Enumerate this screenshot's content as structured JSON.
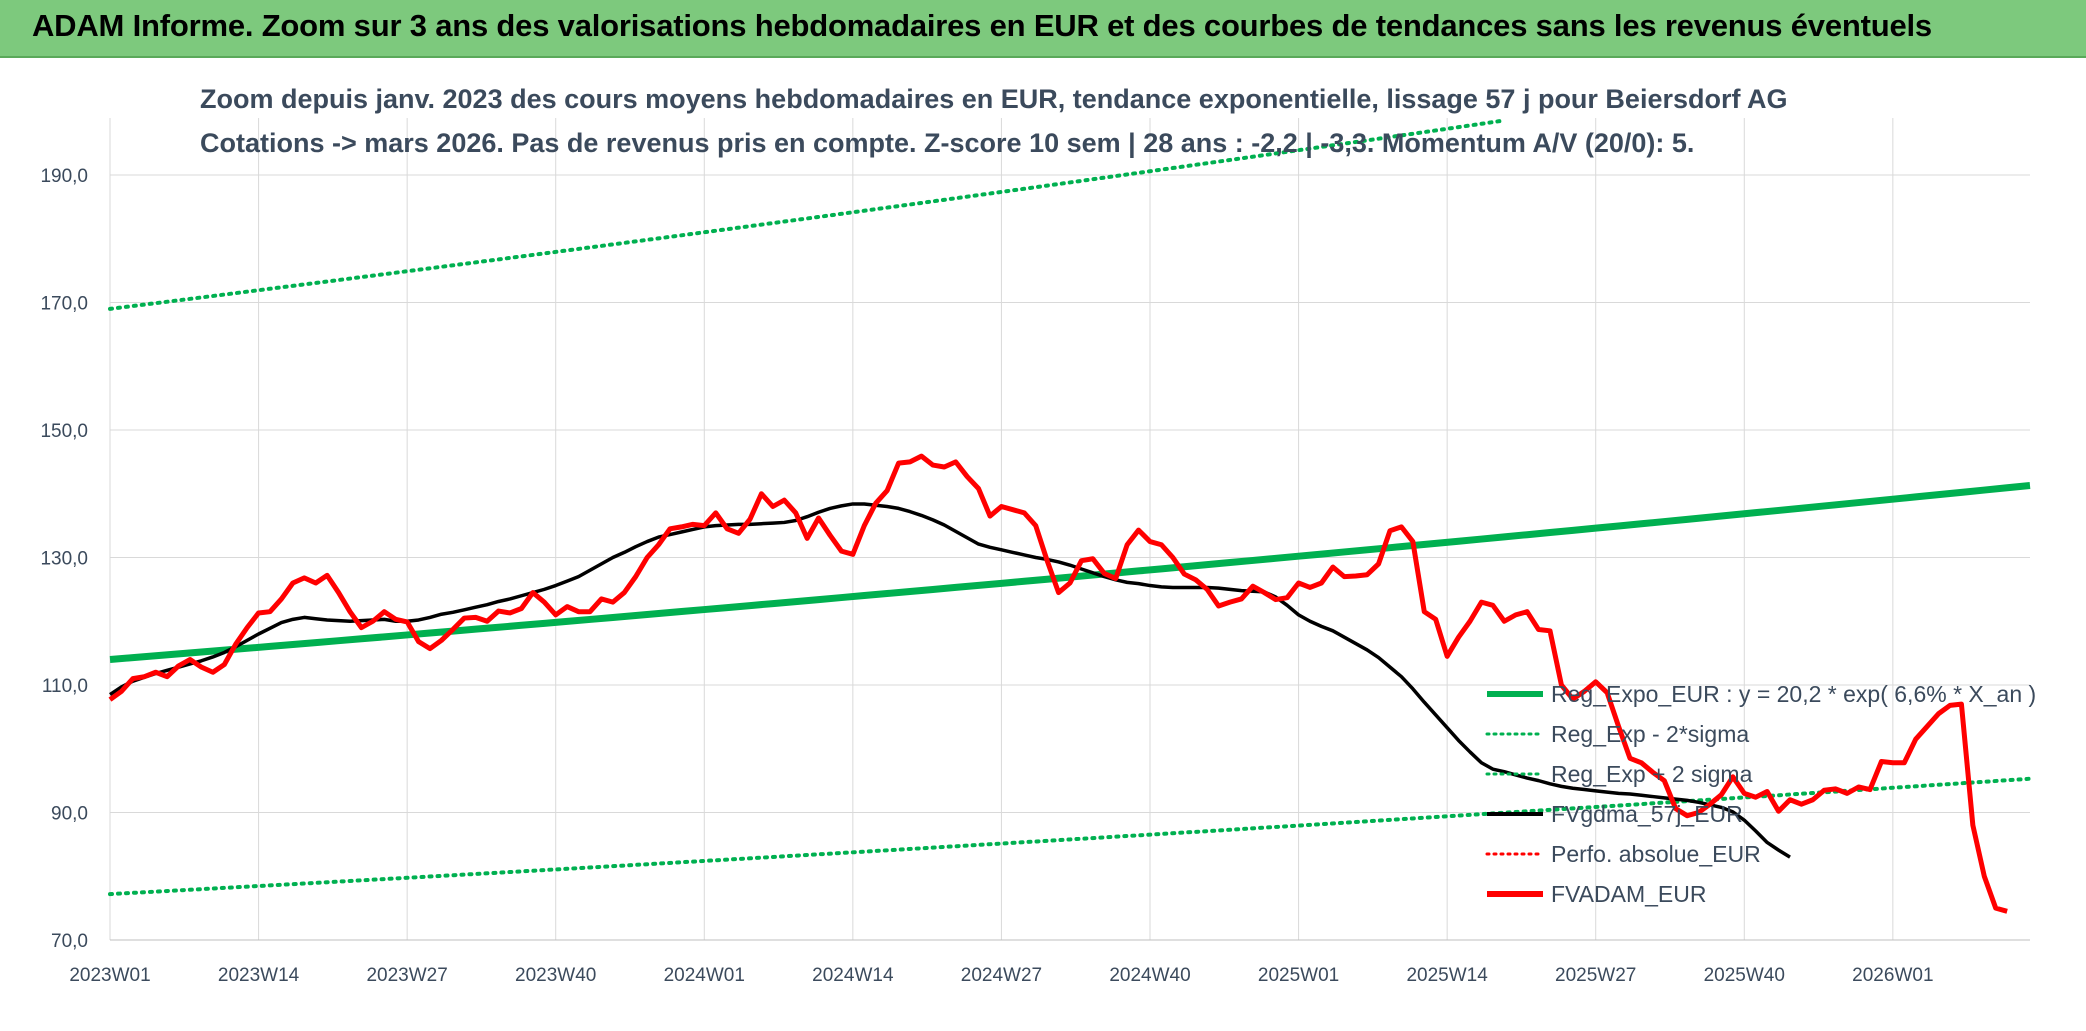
{
  "header": {
    "title": "ADAM Informe. Zoom sur 3 ans des valorisations hebdomadaires en EUR et des courbes de tendances sans les revenus éventuels"
  },
  "chart_data": {
    "type": "line",
    "title": "Zoom depuis janv. 2023 des cours moyens hebdomadaires en EUR, tendance exponentielle, lissage 57 j pour Beiersdorf AG",
    "subtitle": "Cotations -> mars 2026. Pas de revenus pris en compte. Z-score 10 sem | 28 ans : -2,2 | -3,3. Momentum A/V (20/0): 5.",
    "xlabel": "",
    "ylabel": "",
    "ylim": [
      70,
      198
    ],
    "yticks": [
      "70,0",
      "90,0",
      "110,0",
      "130,0",
      "150,0",
      "170,0",
      "190,0"
    ],
    "ytick_values": [
      70,
      90,
      110,
      130,
      150,
      170,
      190
    ],
    "xticks": [
      "2023W01",
      "2023W14",
      "2023W27",
      "2023W40",
      "2024W01",
      "2024W14",
      "2024W27",
      "2024W40",
      "2025W01",
      "2025W14",
      "2025W27",
      "2025W40",
      "2026W01"
    ],
    "x_week_count": 169,
    "grid": true,
    "legend_position": "bottom-right",
    "series": [
      {
        "name": "Reg_Expo_EUR : y = 20,2 * exp( 6,6% *  X_an )",
        "color": "#00b050",
        "style": "solid-thick",
        "endpoints": [
          114.0,
          141.3
        ]
      },
      {
        "name": "Reg_Exp - 2*sigma",
        "color": "#00b050",
        "style": "dotted",
        "endpoints": [
          77.2,
          95.3
        ]
      },
      {
        "name": "Reg_Exp + 2 sigma",
        "color": "#00b050",
        "style": "dotted",
        "endpoints": [
          169.0,
          211.0
        ]
      },
      {
        "name": "FVgdma_57j_EUR",
        "color": "#000000",
        "style": "solid",
        "values": [
          108.5,
          109.7,
          110.6,
          111.2,
          111.8,
          112.3,
          112.8,
          113.3,
          113.8,
          114.4,
          115.1,
          116.0,
          117.0,
          118.0,
          118.9,
          119.8,
          120.3,
          120.6,
          120.4,
          120.2,
          120.1,
          120.0,
          120.1,
          120.2,
          120.3,
          120.0,
          120.0,
          120.2,
          120.6,
          121.1,
          121.4,
          121.8,
          122.2,
          122.6,
          123.1,
          123.5,
          124.0,
          124.5,
          125.0,
          125.6,
          126.3,
          127.0,
          128.0,
          129.0,
          130.0,
          130.8,
          131.7,
          132.5,
          133.2,
          133.6,
          134.0,
          134.4,
          134.8,
          135.0,
          135.1,
          135.2,
          135.2,
          135.3,
          135.4,
          135.5,
          135.8,
          136.4,
          137.1,
          137.7,
          138.1,
          138.4,
          138.4,
          138.2,
          138.0,
          137.7,
          137.2,
          136.6,
          135.9,
          135.1,
          134.1,
          133.1,
          132.1,
          131.6,
          131.2,
          130.8,
          130.4,
          130.0,
          129.7,
          129.3,
          128.8,
          128.2,
          127.6,
          127.0,
          126.5,
          126.1,
          125.9,
          125.6,
          125.4,
          125.3,
          125.3,
          125.3,
          125.3,
          125.2,
          125.0,
          124.8,
          124.7,
          124.6,
          123.8,
          122.5,
          121.0,
          120.0,
          119.2,
          118.5,
          117.5,
          116.5,
          115.5,
          114.3,
          112.8,
          111.3,
          109.4,
          107.3,
          105.3,
          103.3,
          101.3,
          99.5,
          97.8,
          96.8,
          96.4,
          95.9,
          95.4,
          95.0,
          94.5,
          94.1,
          93.8,
          93.6,
          93.4,
          93.2,
          93.0,
          92.9,
          92.7,
          92.5,
          92.3,
          92.1,
          91.9,
          91.6,
          91.2,
          90.8,
          90.1,
          88.8,
          87.1,
          85.3,
          84.1,
          83.0
        ]
      },
      {
        "name": "Perfo. absolue_EUR",
        "color": "#ff0000",
        "style": "dotted"
      },
      {
        "name": "FVADAM_EUR",
        "color": "#ff0000",
        "style": "solid-thick",
        "values": [
          107.7,
          109.0,
          111.0,
          111.3,
          112.0,
          111.3,
          113.0,
          114.0,
          112.8,
          112.0,
          113.2,
          116.4,
          119.0,
          121.3,
          121.5,
          123.5,
          126.0,
          126.8,
          126.0,
          127.2,
          124.5,
          121.5,
          119.0,
          120.0,
          121.5,
          120.3,
          119.9,
          116.8,
          115.7,
          117.0,
          118.7,
          120.5,
          120.6,
          120.0,
          121.6,
          121.3,
          122.0,
          124.5,
          123.0,
          121.0,
          122.3,
          121.5,
          121.5,
          123.5,
          123.0,
          124.5,
          127.0,
          130.0,
          132.0,
          134.5,
          134.8,
          135.2,
          135.0,
          137.0,
          134.5,
          133.8,
          136.0,
          140.0,
          138.0,
          139.0,
          137.0,
          133.0,
          136.2,
          133.5,
          131.0,
          130.5,
          135.0,
          138.5,
          140.5,
          144.8,
          145.0,
          145.9,
          144.5,
          144.2,
          145.0,
          142.7,
          140.8,
          136.5,
          138.0,
          137.5,
          137.0,
          135.0,
          129.5,
          124.5,
          126.0,
          129.5,
          129.8,
          127.5,
          126.7,
          132.0,
          134.3,
          132.5,
          132.0,
          130.0,
          127.4,
          126.5,
          125.0,
          122.4,
          123.0,
          123.5,
          125.5,
          124.5,
          123.4,
          123.7,
          126.0,
          125.3,
          126.0,
          128.5,
          127.0,
          127.1,
          127.3,
          129.0,
          134.2,
          134.8,
          132.5,
          121.5,
          120.3,
          114.5,
          117.5,
          120.0,
          123.0,
          122.5,
          120.0,
          121.0,
          121.5,
          118.7,
          118.5,
          110.0,
          107.8,
          109.0,
          110.5,
          108.8,
          103.5,
          98.5,
          97.8,
          96.3,
          95.0,
          90.6,
          89.5,
          90.0,
          91.3,
          92.8,
          95.6,
          93.0,
          92.4,
          93.3,
          90.2,
          92.0,
          91.3,
          92.0,
          93.5,
          93.7,
          93.0,
          94.0,
          93.6,
          98.0,
          97.8,
          97.8,
          101.5,
          103.5,
          105.5,
          106.8,
          107.0,
          88.0,
          80.0,
          75.0,
          74.5
        ]
      }
    ]
  }
}
